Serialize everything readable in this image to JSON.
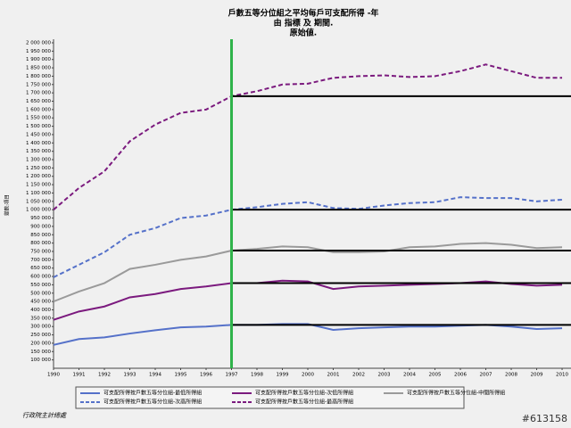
{
  "chart_data": {
    "type": "line",
    "title": "戶數五等分位組之平均每戶可支配所得 -年",
    "subtitle": "由 指標 及 期間.",
    "note": "原始値.",
    "y_label": "變數:項目",
    "source": "行政院主計總處",
    "watermark": "#613158",
    "x": [
      1990,
      1991,
      1992,
      1993,
      1994,
      1995,
      1996,
      1997,
      1998,
      1999,
      2000,
      2001,
      2002,
      2003,
      2004,
      2005,
      2006,
      2007,
      2008,
      2009,
      2010
    ],
    "xlim": [
      1990,
      2010.35
    ],
    "xticks": [
      1990,
      1991,
      1992,
      1993,
      1994,
      1995,
      1996,
      1997,
      1998,
      1999,
      2000,
      2001,
      2002,
      2003,
      2004,
      2005,
      2006,
      2007,
      2008,
      2009,
      2010
    ],
    "ylim": [
      50000,
      2000000
    ],
    "yticks": [
      {
        "value": 100000,
        "label": "100 000"
      },
      {
        "value": 150000,
        "label": "150 000"
      },
      {
        "value": 200000,
        "label": "200 000"
      },
      {
        "value": 250000,
        "label": "250 000"
      },
      {
        "value": 300000,
        "label": "300 000"
      },
      {
        "value": 350000,
        "label": "350 000"
      },
      {
        "value": 400000,
        "label": "400 000"
      },
      {
        "value": 450000,
        "label": "450 000"
      },
      {
        "value": 500000,
        "label": "500 000"
      },
      {
        "value": 550000,
        "label": "550 000"
      },
      {
        "value": 600000,
        "label": "600 000"
      },
      {
        "value": 650000,
        "label": "650 000"
      },
      {
        "value": 700000,
        "label": "700 000"
      },
      {
        "value": 750000,
        "label": "750 000"
      },
      {
        "value": 800000,
        "label": "800 000"
      },
      {
        "value": 850000,
        "label": "850 000"
      },
      {
        "value": 900000,
        "label": "900 000"
      },
      {
        "value": 950000,
        "label": "950 000"
      },
      {
        "value": 1000000,
        "label": "1 000 000"
      },
      {
        "value": 1050000,
        "label": "1 050 000"
      },
      {
        "value": 1100000,
        "label": "1 100 000"
      },
      {
        "value": 1150000,
        "label": "1 150 000"
      },
      {
        "value": 1200000,
        "label": "1 200 000"
      },
      {
        "value": 1250000,
        "label": "1 250 000"
      },
      {
        "value": 1300000,
        "label": "1 300 000"
      },
      {
        "value": 1350000,
        "label": "1 350 000"
      },
      {
        "value": 1400000,
        "label": "1 400 000"
      },
      {
        "value": 1450000,
        "label": "1 450 000"
      },
      {
        "value": 1500000,
        "label": "1 500 000"
      },
      {
        "value": 1550000,
        "label": "1 550 000"
      },
      {
        "value": 1600000,
        "label": "1 600 000"
      },
      {
        "value": 1650000,
        "label": "1 650 000"
      },
      {
        "value": 1700000,
        "label": "1 700 000"
      },
      {
        "value": 1750000,
        "label": "1 750 000"
      },
      {
        "value": 1800000,
        "label": "1 800 000"
      },
      {
        "value": 1850000,
        "label": "1 850 000"
      },
      {
        "value": 1900000,
        "label": "1 900 000"
      },
      {
        "value": 1950000,
        "label": "1 950 000"
      },
      {
        "value": 2000000,
        "label": "2 000 000"
      }
    ],
    "reference_x": 1997,
    "reference_color": "#2fb34a",
    "grid": false,
    "series": [
      {
        "name": "可支配所得按戶數五等分位組-最低所得組",
        "color": "#5571c9",
        "dashed": false,
        "values": [
          190000,
          225000,
          235000,
          258000,
          278000,
          295000,
          300000,
          310000,
          310000,
          315000,
          315000,
          280000,
          290000,
          295000,
          300000,
          300000,
          305000,
          310000,
          300000,
          285000,
          290000
        ]
      },
      {
        "name": "可支配所得按戶數五等分位組-次低所得組",
        "color": "#7b1a7e",
        "dashed": false,
        "values": [
          340000,
          390000,
          420000,
          475000,
          495000,
          525000,
          540000,
          560000,
          560000,
          575000,
          570000,
          525000,
          540000,
          545000,
          550000,
          555000,
          560000,
          570000,
          555000,
          545000,
          550000
        ]
      },
      {
        "name": "可支配所得按戶數五等分位組-中間所得組",
        "color": "#9a9a9a",
        "dashed": false,
        "values": [
          450000,
          510000,
          560000,
          645000,
          670000,
          700000,
          720000,
          755000,
          765000,
          780000,
          775000,
          745000,
          745000,
          750000,
          775000,
          780000,
          795000,
          800000,
          790000,
          770000,
          775000
        ]
      },
      {
        "name": "可支配所得按戶數五等分位組-次高所得組",
        "color": "#5571c9",
        "dashed": true,
        "values": [
          595000,
          670000,
          745000,
          850000,
          890000,
          950000,
          965000,
          1000000,
          1015000,
          1035000,
          1045000,
          1010000,
          1005000,
          1025000,
          1040000,
          1045000,
          1075000,
          1070000,
          1070000,
          1050000,
          1060000
        ]
      },
      {
        "name": "可支配所得按戶數五等分位組-最高所得組",
        "color": "#7b1a7e",
        "dashed": true,
        "values": [
          1000000,
          1130000,
          1230000,
          1410000,
          1510000,
          1580000,
          1600000,
          1680000,
          1710000,
          1750000,
          1755000,
          1790000,
          1800000,
          1805000,
          1795000,
          1800000,
          1830000,
          1870000,
          1830000,
          1790000,
          1790000
        ]
      }
    ]
  }
}
